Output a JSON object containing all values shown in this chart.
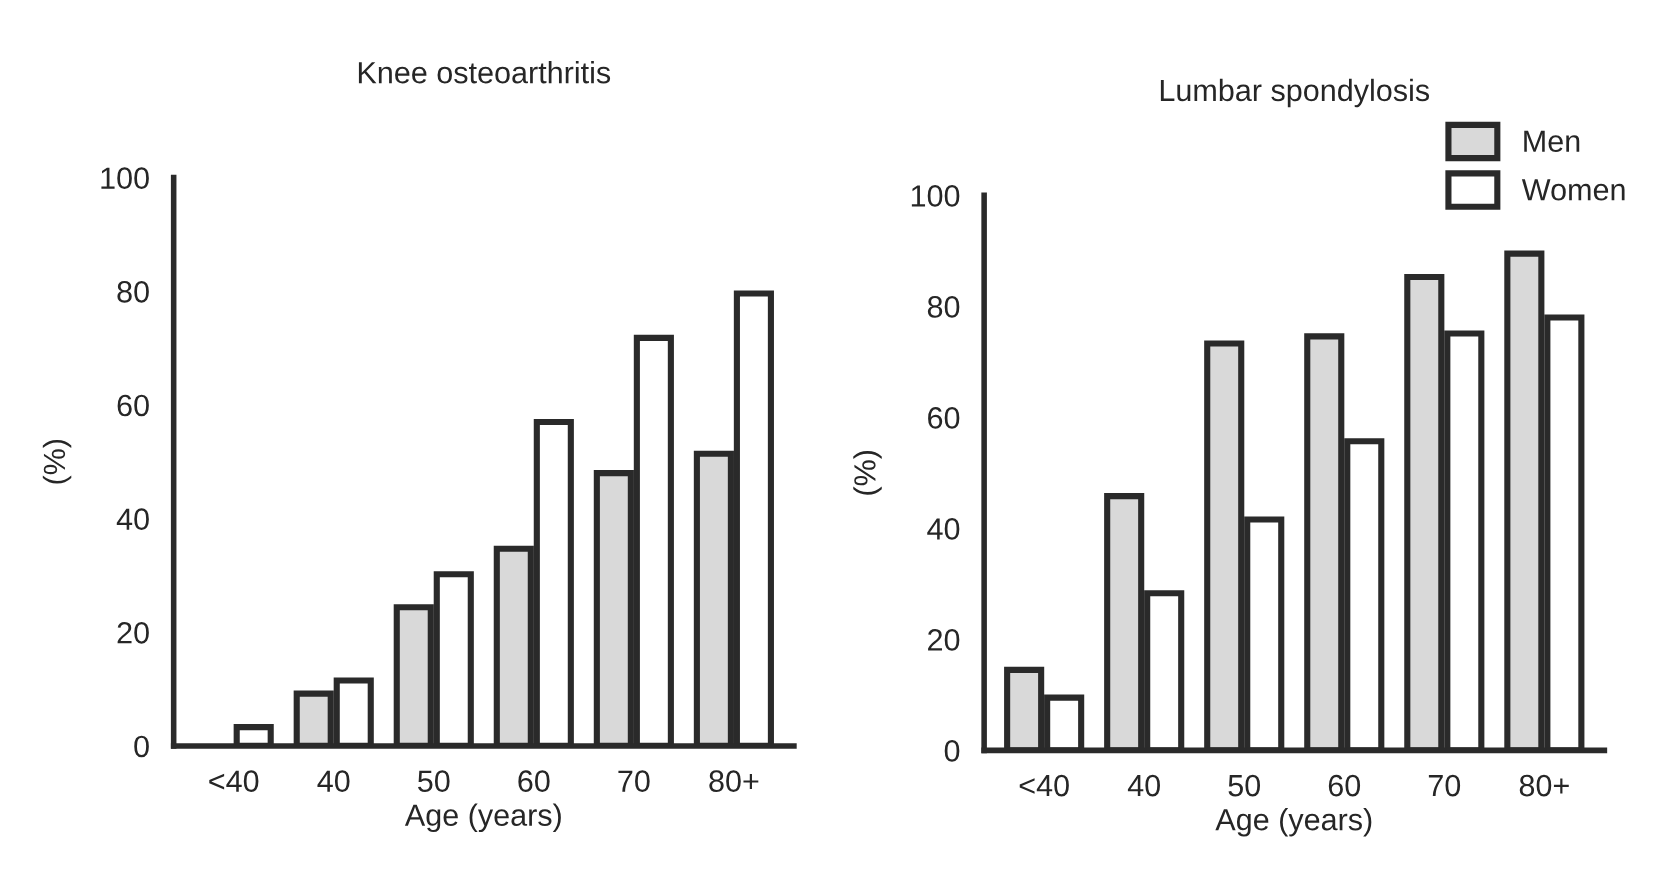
{
  "chart_data": [
    {
      "type": "bar",
      "title": "Knee osteoarthritis",
      "xlabel": "Age (years)",
      "ylabel": "(%)",
      "categories": [
        "<40",
        "40",
        "50",
        "60",
        "70",
        "80+"
      ],
      "ylim": [
        0,
        100
      ],
      "yticks": [
        0,
        20,
        40,
        60,
        80,
        100
      ],
      "grid": false,
      "legend": false,
      "series": [
        {
          "color": "#d9d9d9",
          "values": [
            null,
            9.2,
            24.4,
            34.7,
            48,
            51.4
          ]
        },
        {
          "color": "#ffffff",
          "values": [
            3.3,
            11.5,
            30.2,
            57,
            71.8,
            79.6
          ]
        }
      ]
    },
    {
      "type": "bar",
      "title": "Lumbar spondylosis",
      "xlabel": "Age (years)",
      "ylabel": "(%)",
      "categories": [
        "<40",
        "40",
        "50",
        "60",
        "70",
        "80+"
      ],
      "ylim": [
        0,
        100
      ],
      "yticks": [
        0,
        20,
        40,
        60,
        80,
        100
      ],
      "grid": false,
      "legend": "top right",
      "series": [
        {
          "name": "Men",
          "color": "#d9d9d9",
          "values": [
            14.5,
            45.8,
            73.3,
            74.6,
            85.3,
            89.5
          ]
        },
        {
          "name": "Women",
          "color": "#ffffff",
          "values": [
            9.5,
            28.3,
            41.6,
            55.7,
            75.1,
            78
          ]
        }
      ]
    }
  ]
}
